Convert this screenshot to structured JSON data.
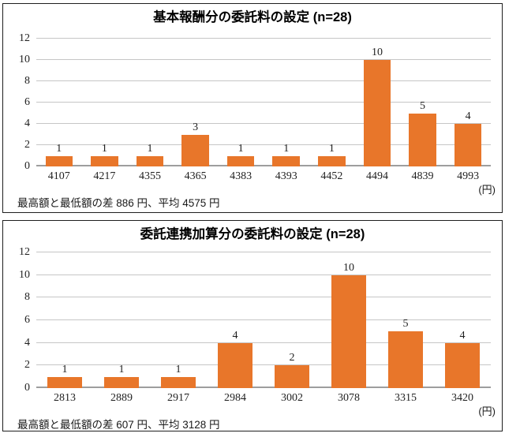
{
  "colors": {
    "bar": "#E8762A",
    "gridline": "#C6C6C6",
    "axis_line": "#9E9E9E",
    "text": "#1A1A1A",
    "panel_border": "#1F1F1F"
  },
  "chart_data": [
    {
      "type": "bar",
      "title": "基本報酬分の委託料の設定 (n=28)",
      "categories": [
        "4107",
        "4217",
        "4355",
        "4365",
        "4383",
        "4393",
        "4452",
        "4494",
        "4839",
        "4993"
      ],
      "values": [
        1,
        1,
        1,
        3,
        1,
        1,
        1,
        10,
        5,
        4
      ],
      "xlabel_unit": "(円)",
      "ylabel": "",
      "ylim": [
        0,
        12
      ],
      "ytick_step": 2,
      "grid": true,
      "legend": "none",
      "bar_color": "#E8762A",
      "footnote": "最高額と最低額の差 886 円、平均 4575 円"
    },
    {
      "type": "bar",
      "title": "委託連携加算分の委託料の設定 (n=28)",
      "categories": [
        "2813",
        "2889",
        "2917",
        "2984",
        "3002",
        "3078",
        "3315",
        "3420"
      ],
      "values": [
        1,
        1,
        1,
        4,
        2,
        10,
        5,
        4
      ],
      "xlabel_unit": "(円)",
      "ylabel": "",
      "ylim": [
        0,
        12
      ],
      "ytick_step": 2,
      "grid": true,
      "legend": "none",
      "bar_color": "#E8762A",
      "footnote": "最高額と最低額の差 607 円、平均 3128 円"
    }
  ]
}
